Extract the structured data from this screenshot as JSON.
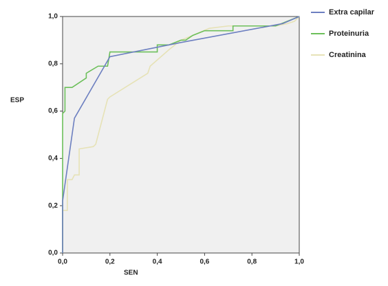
{
  "chart_data": {
    "type": "line",
    "x_label": "SEN",
    "y_label": "ESP",
    "xlim": [
      0,
      1
    ],
    "ylim": [
      0,
      1
    ],
    "xticks": [
      {
        "value": 0,
        "label": "0,0"
      },
      {
        "value": 0.2,
        "label": "0,2"
      },
      {
        "value": 0.4,
        "label": "0,4"
      },
      {
        "value": 0.6,
        "label": "0,6"
      },
      {
        "value": 0.8,
        "label": "0,8"
      },
      {
        "value": 1,
        "label": "1,0"
      }
    ],
    "yticks": [
      {
        "value": 0,
        "label": "0,0"
      },
      {
        "value": 0.2,
        "label": "0,2"
      },
      {
        "value": 0.4,
        "label": "0,4"
      },
      {
        "value": 0.6,
        "label": "0,6"
      },
      {
        "value": 0.8,
        "label": "0,8"
      },
      {
        "value": 1,
        "label": "1,0"
      }
    ],
    "series": [
      {
        "name": "Extra capilar",
        "color": "#6c7fc0",
        "x": [
          0,
          0,
          0.05,
          0.2,
          0.4,
          0.5,
          0.93,
          1
        ],
        "values": [
          0,
          0.22,
          0.57,
          0.83,
          0.87,
          0.89,
          0.97,
          1
        ]
      },
      {
        "name": "Proteinuria",
        "color": "#6cbf5a",
        "x": [
          0,
          0,
          0.01,
          0.01,
          0.04,
          0.1,
          0.1,
          0.15,
          0.19,
          0.2,
          0.4,
          0.4,
          0.45,
          0.5,
          0.52,
          0.55,
          0.6,
          0.72,
          0.72,
          0.9,
          0.95,
          1
        ],
        "values": [
          0,
          0.59,
          0.6,
          0.7,
          0.7,
          0.74,
          0.76,
          0.79,
          0.79,
          0.85,
          0.85,
          0.88,
          0.88,
          0.9,
          0.9,
          0.92,
          0.94,
          0.94,
          0.96,
          0.96,
          0.98,
          1
        ]
      },
      {
        "name": "Creatinina",
        "color": "#e6e2b6",
        "x": [
          0,
          0,
          0.02,
          0.02,
          0.04,
          0.05,
          0.07,
          0.07,
          0.13,
          0.14,
          0.19,
          0.2,
          0.36,
          0.37,
          0.45,
          0.5,
          0.55,
          0.62,
          0.7,
          0.9,
          0.95,
          0.98,
          1
        ],
        "values": [
          0,
          0.18,
          0.18,
          0.31,
          0.31,
          0.33,
          0.33,
          0.44,
          0.45,
          0.46,
          0.65,
          0.66,
          0.76,
          0.79,
          0.86,
          0.9,
          0.92,
          0.95,
          0.96,
          0.96,
          0.97,
          0.98,
          1
        ]
      }
    ]
  }
}
